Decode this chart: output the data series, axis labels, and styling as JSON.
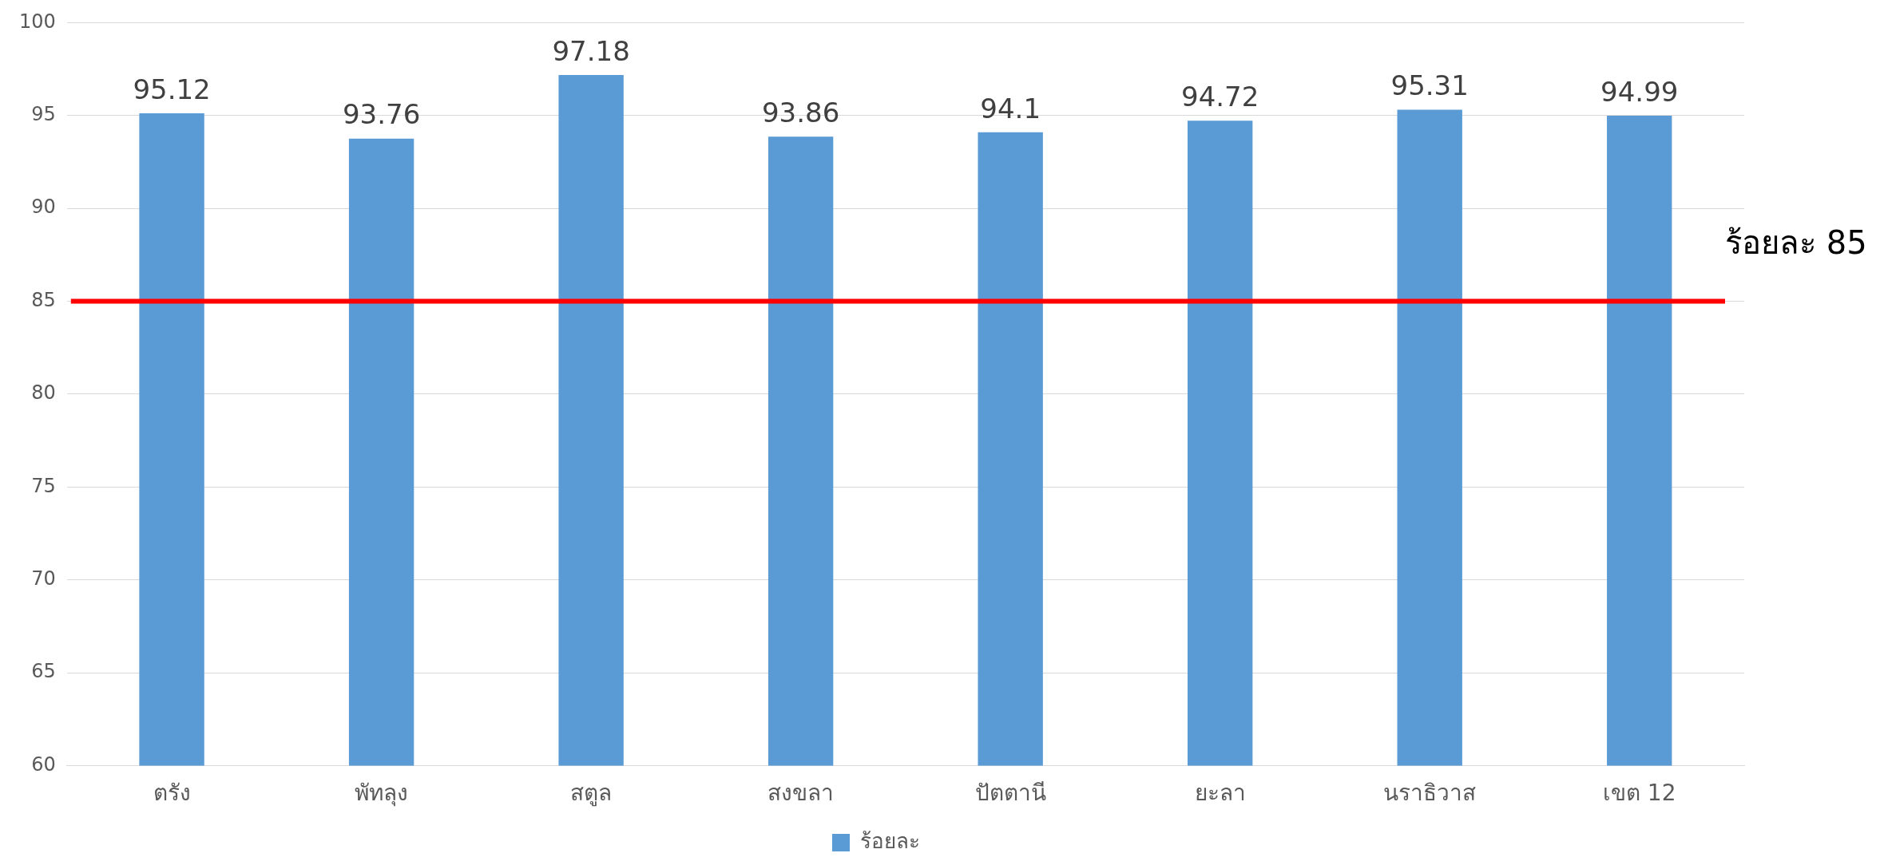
{
  "chart_data": {
    "type": "bar",
    "categories": [
      "ตรัง",
      "พัทลุง",
      "สตูล",
      "สงขลา",
      "ปัตตานี",
      "ยะลา",
      "นราธิวาส",
      "เขต 12"
    ],
    "series": [
      {
        "name": "ร้อยละ",
        "color": "#5b9bd5",
        "values": [
          95.12,
          93.76,
          97.18,
          93.86,
          94.1,
          94.72,
          95.31,
          94.99
        ]
      }
    ],
    "ylim": [
      60,
      100
    ],
    "yticks": [
      60,
      65,
      70,
      75,
      80,
      85,
      90,
      95,
      100
    ],
    "grid": "y",
    "legend": "bottom",
    "data_labels": true,
    "ref_lines": [
      {
        "axis": "y",
        "value": 85,
        "label": "ร้อยละ 85",
        "color": "#ff0000",
        "line_style": "solid"
      }
    ]
  }
}
